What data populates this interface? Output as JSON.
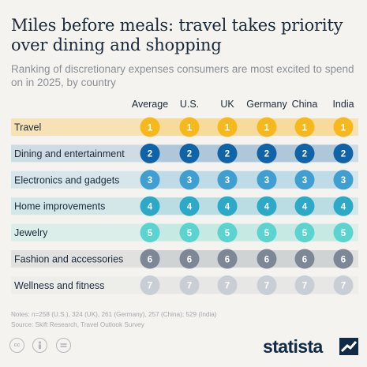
{
  "title": "Miles before meals: travel takes priority over dining and shopping",
  "subtitle": "Ranking of discretionary expenses consumers are most excited to spend on in 2025, by country",
  "notes": "Notes: n=258 (U.S.), 324 (UK), 261 (Germany), 257 (China); 529 (India)",
  "source": "Source: Skift Research, Travel Outlook Survey",
  "brand": "statista",
  "icons": [
    "cc-icon",
    "person-icon",
    "equals-icon"
  ],
  "colors": {
    "rank1": "#f7b81e",
    "rank2": "#0f63a6",
    "rank3": "#3f9fd1",
    "rank4": "#2ba9c7",
    "rank5": "#5bd3cf",
    "rank6": "#7d8795",
    "rank7": "#c9ced6"
  },
  "chart_data": {
    "type": "table",
    "columns": [
      "Average",
      "U.S.",
      "UK",
      "Germany",
      "China",
      "India"
    ],
    "rows": [
      {
        "category": "Travel",
        "ranks": [
          1,
          1,
          1,
          1,
          1,
          1
        ]
      },
      {
        "category": "Dining and entertainment",
        "ranks": [
          2,
          2,
          2,
          2,
          2,
          2
        ]
      },
      {
        "category": "Electronics and gadgets",
        "ranks": [
          3,
          3,
          3,
          3,
          3,
          3
        ]
      },
      {
        "category": "Home improvements",
        "ranks": [
          4,
          4,
          4,
          4,
          4,
          4
        ]
      },
      {
        "category": "Jewelry",
        "ranks": [
          5,
          5,
          5,
          5,
          5,
          5
        ]
      },
      {
        "category": "Fashion and accessories",
        "ranks": [
          6,
          6,
          6,
          6,
          6,
          6
        ]
      },
      {
        "category": "Wellness and fitness",
        "ranks": [
          7,
          7,
          7,
          7,
          7,
          7
        ]
      }
    ]
  }
}
